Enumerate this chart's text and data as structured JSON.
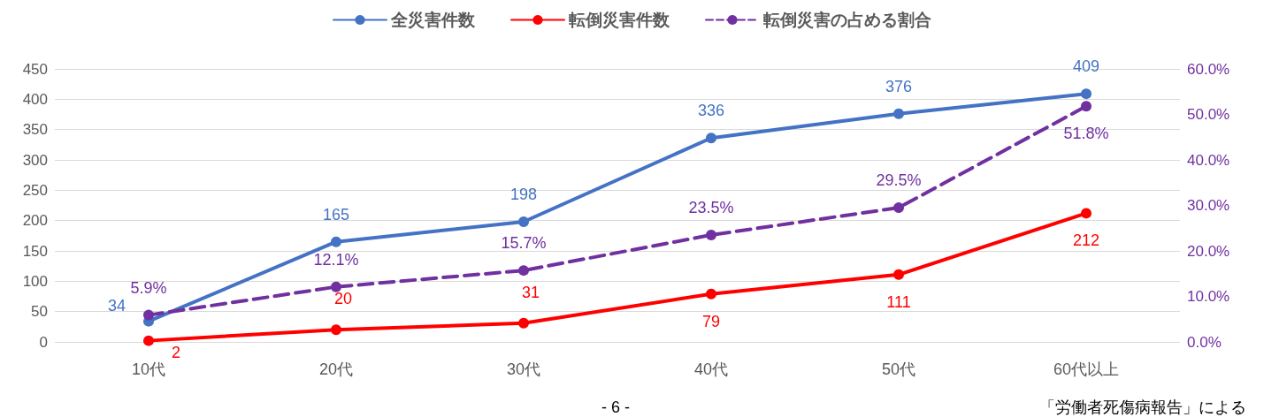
{
  "chart_data": {
    "type": "line",
    "categories": [
      "10代",
      "20代",
      "30代",
      "40代",
      "50代",
      "60代以上"
    ],
    "series": [
      {
        "name": "全災害件数",
        "color": "#4472c4",
        "values": [
          34,
          165,
          198,
          336,
          376,
          409
        ],
        "value_labels": [
          "34",
          "165",
          "198",
          "336",
          "376",
          "409"
        ]
      },
      {
        "name": "転倒災害件数",
        "color": "#ff0000",
        "values": [
          2,
          20,
          31,
          79,
          111,
          212
        ],
        "value_labels": [
          "2",
          "20",
          "31",
          "79",
          "111",
          "212"
        ]
      },
      {
        "name": "転倒災害の占める割合",
        "color": "#7030a0",
        "axis": "y2",
        "line_style": "dashed",
        "values": [
          5.9,
          12.1,
          15.7,
          23.5,
          29.5,
          51.8
        ],
        "value_labels": [
          "5.9%",
          "12.1%",
          "15.7%",
          "23.5%",
          "29.5%",
          "51.8%"
        ]
      }
    ],
    "ylim": [
      0,
      450
    ],
    "yticks": [
      0,
      50,
      100,
      150,
      200,
      250,
      300,
      350,
      400,
      450
    ],
    "y2lim": [
      0,
      60
    ],
    "y2ticks": [
      {
        "value": 0,
        "label": "0.0%"
      },
      {
        "value": 10,
        "label": "10.0%"
      },
      {
        "value": 20,
        "label": "20.0%"
      },
      {
        "value": 30,
        "label": "30.0%"
      },
      {
        "value": 40,
        "label": "40.0%"
      },
      {
        "value": 50,
        "label": "50.0%"
      },
      {
        "value": 60,
        "label": "60.0%"
      }
    ],
    "grid": "y",
    "legend": "top",
    "marker": "circle",
    "line_style": "solid",
    "annotations": [
      "- 6 -",
      "「労働者死傷病報告」による"
    ]
  }
}
